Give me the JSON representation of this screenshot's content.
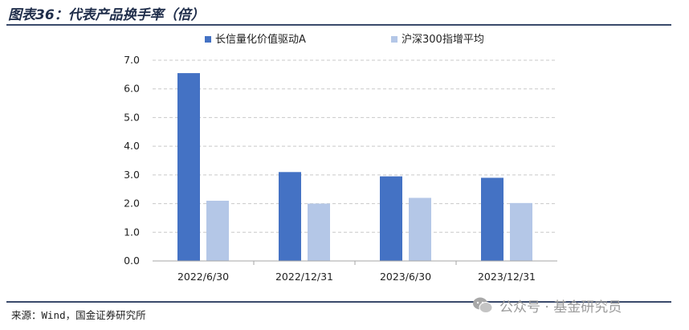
{
  "header": {
    "title": "图表36：代表产品换手率（倍）"
  },
  "footer": {
    "source": "来源：Wind，国金证券研究所",
    "watermark": "公众号 · 基金研究员"
  },
  "colors": {
    "series1": "#4472c4",
    "series2": "#b4c7e7",
    "rule": "#3a4a6b"
  },
  "chart_data": {
    "type": "bar",
    "categories": [
      "2022/6/30",
      "2022/12/31",
      "2023/6/30",
      "2023/12/31"
    ],
    "series": [
      {
        "name": "长信量化价值驱动A",
        "values": [
          6.55,
          3.1,
          2.95,
          2.9
        ]
      },
      {
        "name": "沪深300指增平均",
        "values": [
          2.1,
          2.0,
          2.2,
          2.02
        ]
      }
    ],
    "ylim": [
      0,
      7
    ],
    "yticks": [
      "0.0",
      "1.0",
      "2.0",
      "3.0",
      "4.0",
      "5.0",
      "6.0",
      "7.0"
    ],
    "grid": true,
    "legend_position": "top"
  }
}
